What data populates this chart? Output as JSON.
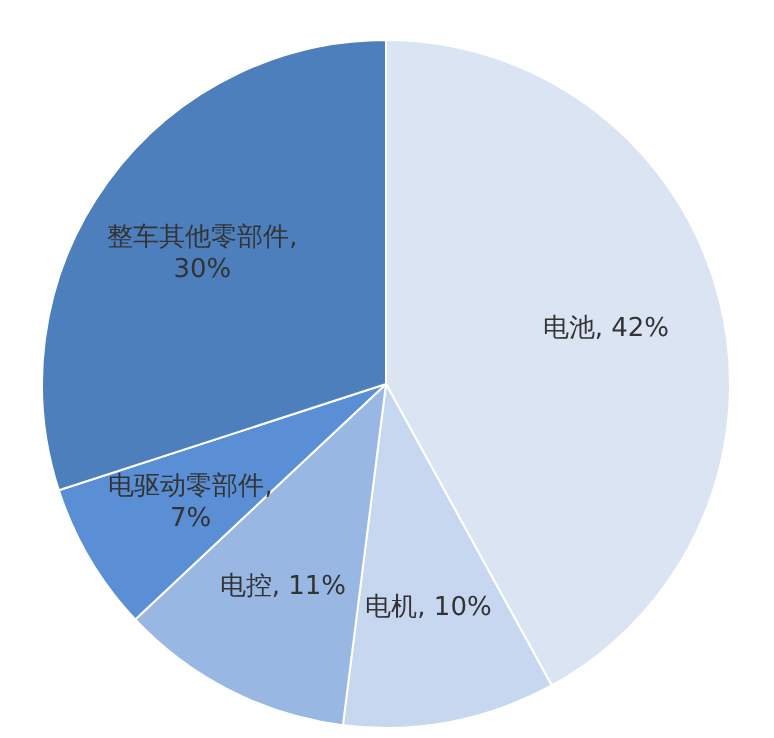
{
  "chart_data": {
    "type": "pie",
    "categories": [
      "电池",
      "电机",
      "电控",
      "电驱动零部件",
      "整车其他零部件"
    ],
    "values": [
      42,
      10,
      11,
      7,
      30
    ],
    "value_labels": [
      ", 42%",
      ", 10%",
      ", 11%",
      ", 7%",
      ", 30%"
    ],
    "colors": [
      "#dbe4f2",
      "#c6d7ef",
      "#98b7e3",
      "#5a8fd6",
      "#4e7fbd"
    ],
    "legend": false
  }
}
